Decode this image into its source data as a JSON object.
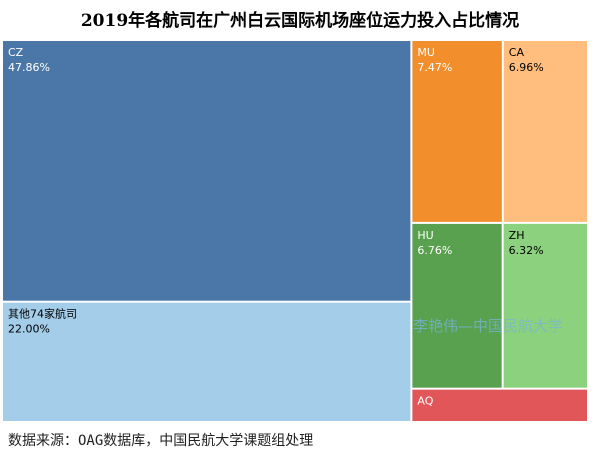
{
  "chart_data": {
    "type": "treemap",
    "title": "2019年各航司在广州白云国际机场座位运力投入占比情况",
    "items": [
      {
        "name": "CZ",
        "label": "47.86%",
        "value": 47.86,
        "color": "#4a77a8",
        "text_color": "#ffffff"
      },
      {
        "name": "其他74家航司",
        "label": "22.00%",
        "value": 22.0,
        "color": "#a3cde9",
        "text_color": "#000000"
      },
      {
        "name": "MU",
        "label": "7.47%",
        "value": 7.47,
        "color": "#f28e2b",
        "text_color": "#ffffff"
      },
      {
        "name": "CA",
        "label": "6.96%",
        "value": 6.96,
        "color": "#ffbe7d",
        "text_color": "#000000"
      },
      {
        "name": "HU",
        "label": "6.76%",
        "value": 6.76,
        "color": "#59a14f",
        "text_color": "#ffffff"
      },
      {
        "name": "ZH",
        "label": "6.32%",
        "value": 6.32,
        "color": "#8cd17d",
        "text_color": "#000000"
      },
      {
        "name": "AQ",
        "label": "",
        "value": 2.63,
        "color": "#e15759",
        "text_color": "#ffffff"
      }
    ]
  },
  "watermark": "李艳伟—中国民航大学",
  "source": "数据来源：OAG数据库，中国民航大学课题组处理"
}
